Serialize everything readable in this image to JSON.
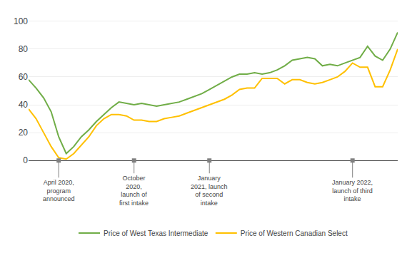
{
  "chart_data": {
    "type": "line",
    "categories": [
      null,
      null,
      null,
      null,
      null,
      null,
      null,
      null,
      null,
      null,
      null,
      null,
      null,
      null,
      null,
      null,
      null,
      null,
      null,
      null,
      null,
      null,
      null,
      null,
      null,
      null,
      null,
      null,
      null,
      null,
      null,
      null,
      null,
      null,
      null,
      null,
      null,
      null,
      null,
      null,
      null,
      null,
      null,
      null,
      null,
      null,
      null,
      null,
      null,
      null
    ],
    "series": [
      {
        "name": "Price of West Texas Intermediate",
        "color": "#70ad47",
        "values": [
          58,
          52,
          45,
          35,
          17,
          5,
          10,
          17,
          22,
          28,
          33,
          38,
          42,
          41,
          40,
          41,
          40,
          39,
          40,
          41,
          42,
          44,
          46,
          48,
          51,
          54,
          57,
          60,
          62,
          62,
          63,
          62,
          63,
          65,
          68,
          72,
          73,
          74,
          73,
          68,
          69,
          68,
          70,
          72,
          74,
          82,
          75,
          72,
          80,
          92
        ]
      },
      {
        "name": "Price of Western Canadian Select",
        "color": "#ffc000",
        "values": [
          37,
          30,
          20,
          10,
          2,
          1,
          5,
          11,
          17,
          25,
          30,
          33,
          33,
          32,
          29,
          29,
          28,
          28,
          30,
          31,
          32,
          34,
          36,
          38,
          40,
          42,
          44,
          47,
          51,
          52,
          52,
          59,
          59,
          59,
          55,
          58,
          58,
          56,
          55,
          56,
          58,
          60,
          64,
          70,
          67,
          67,
          53,
          53,
          65,
          80
        ]
      }
    ],
    "annotations": [
      {
        "text": "April 2020,\nprogram\nannounced",
        "x": 4,
        "y": 0
      },
      {
        "text": "October\n2020,\nlaunch of\nfirst intake",
        "x": 14,
        "y": 0
      },
      {
        "text": "January\n2021, launch\nof second\nintake",
        "x": 24,
        "y": 0
      },
      {
        "text": "January 2022,\nlaunch of third\nintake",
        "x": 43,
        "y": 0
      }
    ],
    "ylim": [
      -5,
      105
    ],
    "yticks": [
      0,
      20,
      40,
      60,
      80,
      100
    ],
    "grid": true,
    "legend": "bottom",
    "tick_labels": "y"
  }
}
